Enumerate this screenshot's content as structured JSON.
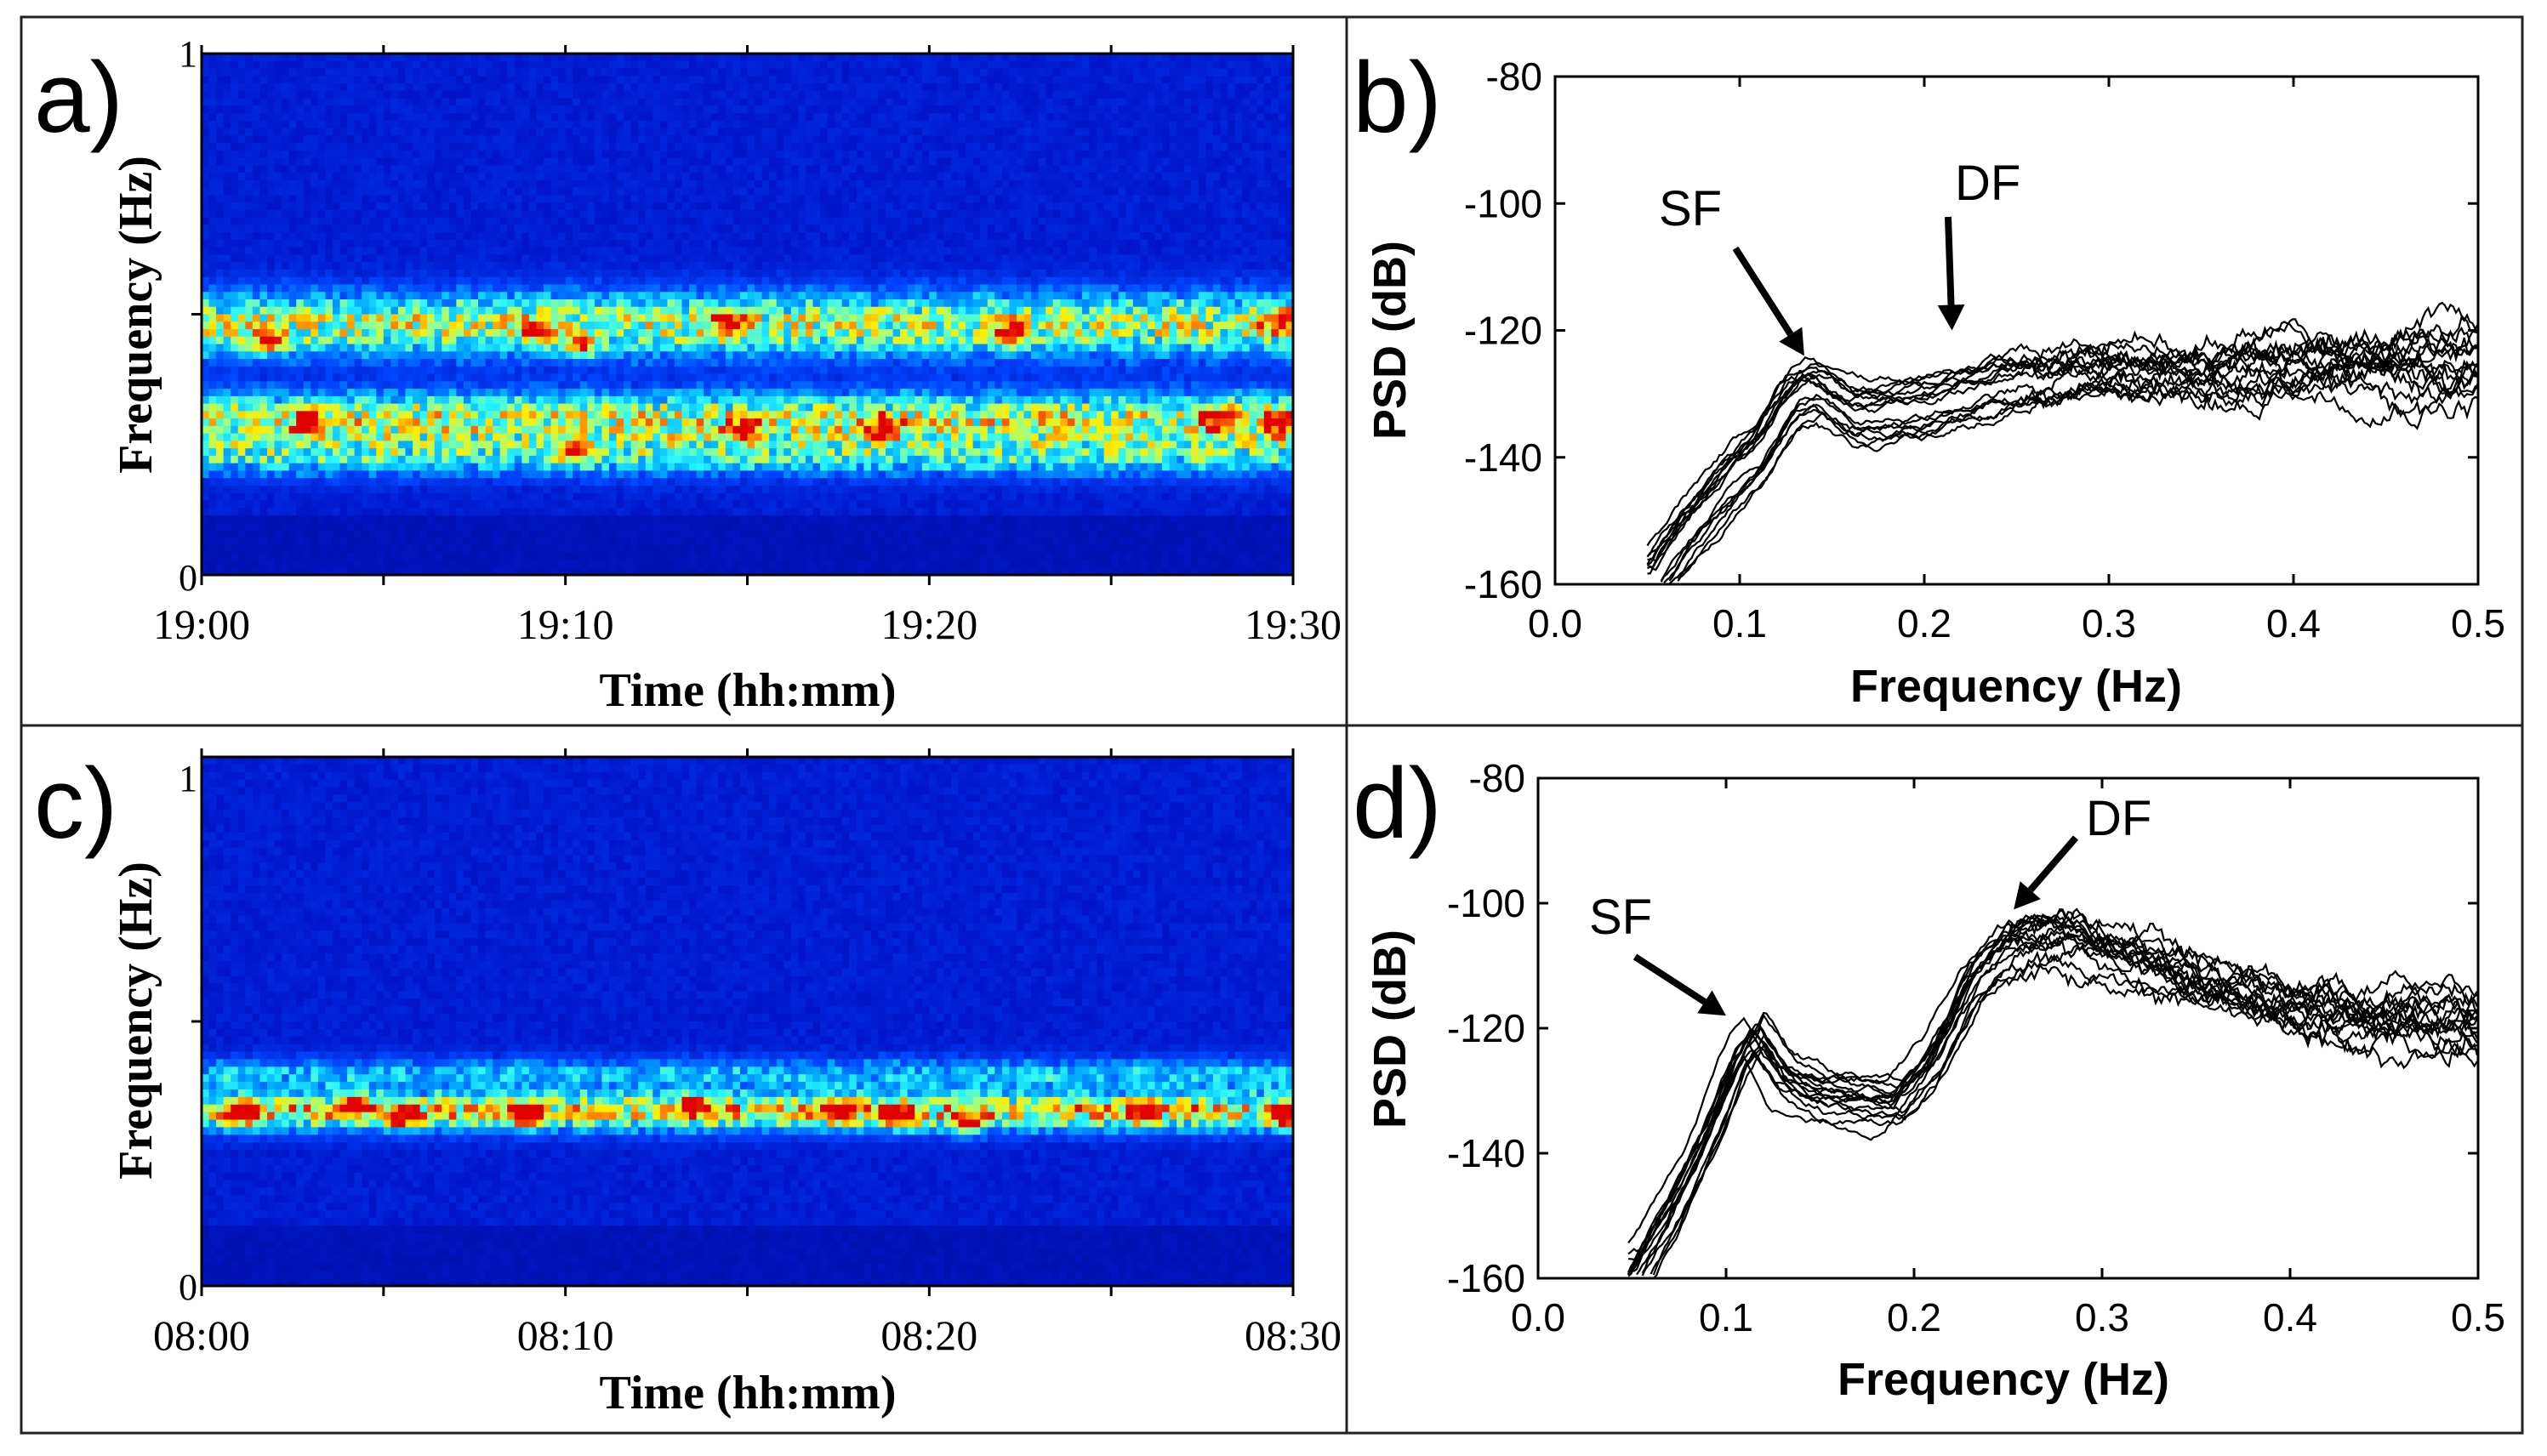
{
  "colors": {
    "line": "#000000",
    "frame": "#222222",
    "colormap": [
      "#000a8f",
      "#0016c8",
      "#0046ff",
      "#00a8ff",
      "#27f5ff",
      "#9dff86",
      "#ffee00",
      "#ff7700",
      "#e00000"
    ]
  },
  "chart_data": [
    {
      "id": "a",
      "type": "heatmap",
      "panel_label": "a)",
      "xlabel": "Time (hh:mm)",
      "ylabel": "Frequency (Hz)",
      "xtick_labels": [
        "19:00",
        "19:10",
        "19:20",
        "19:30"
      ],
      "ytick_labels": [
        "0",
        "1"
      ],
      "xlim_minutes": [
        0,
        30
      ],
      "ylim": [
        0,
        1
      ],
      "colormap": "jet",
      "energy_bands_hz": [
        {
          "center": 0.48,
          "width": 0.06,
          "strength": 0.75
        },
        {
          "center": 0.3,
          "width": 0.05,
          "strength": 0.75
        },
        {
          "center": 0.23,
          "width": 0.04,
          "strength": 0.5
        }
      ],
      "hotspots": [
        {
          "t_min": 1.9,
          "f_hz": 0.45
        },
        {
          "t_min": 3.0,
          "f_hz": 0.29
        },
        {
          "t_min": 9.2,
          "f_hz": 0.47
        },
        {
          "t_min": 10.4,
          "f_hz": 0.44
        },
        {
          "t_min": 10.3,
          "f_hz": 0.24
        },
        {
          "t_min": 14.5,
          "f_hz": 0.48
        },
        {
          "t_min": 14.9,
          "f_hz": 0.28
        },
        {
          "t_min": 18.8,
          "f_hz": 0.28
        },
        {
          "t_min": 22.3,
          "f_hz": 0.46
        },
        {
          "t_min": 27.9,
          "f_hz": 0.3
        },
        {
          "t_min": 29.6,
          "f_hz": 0.49
        },
        {
          "t_min": 29.6,
          "f_hz": 0.29
        }
      ]
    },
    {
      "id": "b",
      "type": "line",
      "panel_label": "b)",
      "xlabel": "Frequency (Hz)",
      "ylabel": "PSD (dB)",
      "xlim": [
        0.0,
        0.5
      ],
      "ylim": [
        -160,
        -80
      ],
      "xtick_labels": [
        "0.0",
        "0.1",
        "0.2",
        "0.3",
        "0.4",
        "0.5"
      ],
      "ytick_labels": [
        "-80",
        "-100",
        "-120",
        "-140",
        "-160"
      ],
      "n_curves": 16,
      "base_curve": {
        "x": [
          0.05,
          0.07,
          0.09,
          0.11,
          0.12,
          0.13,
          0.14,
          0.16,
          0.18,
          0.2,
          0.22,
          0.25,
          0.3,
          0.35,
          0.4,
          0.45,
          0.5
        ],
        "y": [
          -160,
          -152,
          -145,
          -139,
          -134,
          -130,
          -129,
          -133,
          -133,
          -132,
          -130,
          -128,
          -126,
          -127,
          -126,
          -125,
          -125
        ]
      },
      "annotations": [
        {
          "text": "SF",
          "arrow_to": [
            0.135,
            -124
          ]
        },
        {
          "text": "DF",
          "arrow_to": [
            0.215,
            -120
          ]
        }
      ]
    },
    {
      "id": "c",
      "type": "heatmap",
      "panel_label": "c)",
      "xlabel": "Time (hh:mm)",
      "ylabel": "Frequency (Hz)",
      "xtick_labels": [
        "08:00",
        "08:10",
        "08:20",
        "08:30"
      ],
      "ytick_labels": [
        "0",
        "1"
      ],
      "xlim_minutes": [
        0,
        30
      ],
      "ylim": [
        0,
        1
      ],
      "colormap": "jet",
      "energy_bands_hz": [
        {
          "center": 0.33,
          "width": 0.035,
          "strength": 0.85
        },
        {
          "center": 0.4,
          "width": 0.03,
          "strength": 0.4
        }
      ],
      "hotspots": [
        {
          "t_min": 1.2,
          "f_hz": 0.33
        },
        {
          "t_min": 4.2,
          "f_hz": 0.34
        },
        {
          "t_min": 5.5,
          "f_hz": 0.32
        },
        {
          "t_min": 8.9,
          "f_hz": 0.32
        },
        {
          "t_min": 13.5,
          "f_hz": 0.34
        },
        {
          "t_min": 17.5,
          "f_hz": 0.33
        },
        {
          "t_min": 19.2,
          "f_hz": 0.32
        },
        {
          "t_min": 21.0,
          "f_hz": 0.31
        },
        {
          "t_min": 25.9,
          "f_hz": 0.33
        },
        {
          "t_min": 29.8,
          "f_hz": 0.32
        }
      ]
    },
    {
      "id": "d",
      "type": "line",
      "panel_label": "d)",
      "xlabel": "Frequency (Hz)",
      "ylabel": "PSD (dB)",
      "xlim": [
        0.0,
        0.5
      ],
      "ylim": [
        -160,
        -80
      ],
      "xtick_labels": [
        "0.0",
        "0.1",
        "0.2",
        "0.3",
        "0.4",
        "0.5"
      ],
      "ytick_labels": [
        "-80",
        "-100",
        "-120",
        "-140",
        "-160"
      ],
      "n_curves": 16,
      "base_curve": {
        "x": [
          0.048,
          0.07,
          0.09,
          0.105,
          0.115,
          0.13,
          0.15,
          0.17,
          0.19,
          0.21,
          0.23,
          0.25,
          0.28,
          0.3,
          0.35,
          0.4,
          0.45,
          0.5
        ],
        "y": [
          -160,
          -148,
          -136,
          -125,
          -120,
          -127,
          -130,
          -130.5,
          -131,
          -124,
          -112,
          -106,
          -104,
          -107,
          -112,
          -116,
          -118,
          -119
        ]
      },
      "annotations": [
        {
          "text": "SF",
          "arrow_to": [
            0.1,
            -118
          ]
        },
        {
          "text": "DF",
          "arrow_to": [
            0.253,
            -101
          ]
        }
      ]
    }
  ]
}
